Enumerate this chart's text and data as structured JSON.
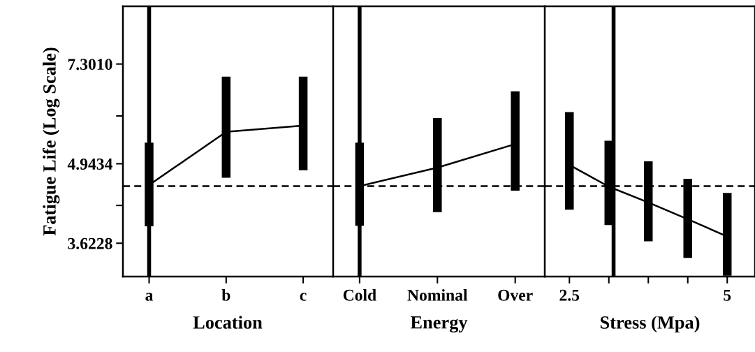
{
  "chart_data": [
    {
      "type": "line",
      "ylabel": "Fatigue Life (Log Scale)",
      "xlabel": "Location",
      "categories": [
        "a",
        "b",
        "c"
      ],
      "series": [
        {
          "color": "#000000",
          "values": [
            4.55,
            5.6,
            5.74
          ],
          "errors": [
            [
              3.87,
              5.37
            ],
            [
              4.68,
              6.95
            ],
            [
              4.82,
              6.95
            ]
          ]
        }
      ],
      "log": "y",
      "ylim": [
        3.18,
        9.15
      ],
      "yticks": [
        3.6228,
        {
          "value": 4.2,
          "label": null
        },
        4.9434,
        {
          "value": 5.96,
          "label": null
        },
        {
          "value": 7.301,
          "label": "7.3010"
        }
      ],
      "ref_lines": [
        {
          "axis": "y",
          "value": 4.53,
          "color": "#000000",
          "line_style": "dashed"
        },
        {
          "axis": "x",
          "value": "a",
          "color": "#000000",
          "line_style": "solid"
        }
      ],
      "line_style": "solid",
      "grid": false,
      "legend": false
    },
    {
      "type": "line",
      "xlabel": "Energy",
      "categories": [
        "Cold",
        "Nominal",
        "Over"
      ],
      "series": [
        {
          "color": "#000000",
          "values": [
            4.53,
            4.87,
            5.34
          ],
          "errors": [
            [
              3.88,
              5.37
            ],
            [
              4.09,
              5.91
            ],
            [
              4.45,
              6.56
            ]
          ]
        }
      ],
      "log": "y",
      "ylim": [
        3.18,
        9.15
      ],
      "tick_labels": "x",
      "ref_lines": [
        {
          "axis": "y",
          "value": 4.53,
          "color": "#000000",
          "line_style": "dashed"
        },
        {
          "axis": "x",
          "value": "Cold",
          "color": "#000000",
          "line_style": "solid"
        }
      ],
      "line_style": "solid",
      "grid": false,
      "legend": false
    },
    {
      "type": "line",
      "xlabel": "Stress (Mpa)",
      "x": [
        2.5,
        3.125,
        3.75,
        4.375,
        5
      ],
      "series": [
        {
          "color": "#000000",
          "values": [
            4.92,
            4.52,
            4.25,
            3.98,
            3.72
          ],
          "errors": [
            [
              4.13,
              6.05
            ],
            [
              3.89,
              5.41
            ],
            [
              3.65,
              4.99
            ],
            [
              3.42,
              4.66
            ],
            [
              3.19,
              4.41
            ]
          ]
        }
      ],
      "log": "y",
      "ylim": [
        3.18,
        9.15
      ],
      "tick_labels": "x",
      "xlim": [
        2.11,
        5.44
      ],
      "xticks": [
        2.5,
        {
          "value": 3.125,
          "label": null
        },
        {
          "value": 3.75,
          "label": null
        },
        {
          "value": 4.375,
          "label": null
        },
        5
      ],
      "ref_lines": [
        {
          "axis": "y",
          "value": 4.53,
          "color": "#000000",
          "line_style": "dashed"
        },
        {
          "axis": "x",
          "value": 3.2,
          "color": "#000000",
          "line_style": "solid"
        }
      ],
      "line_style": "solid",
      "grid": false,
      "legend": false
    }
  ]
}
